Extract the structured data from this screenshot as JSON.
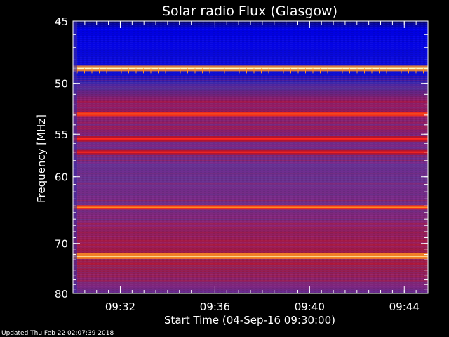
{
  "chart_data": {
    "type": "heatmap",
    "title": "Solar radio Flux (Glasgow)",
    "xlabel": "Start Time (04-Sep-16 09:30:00)",
    "ylabel": "Frequency [MHz]",
    "ylim": [
      80,
      45
    ],
    "y_scale": "reciprocal",
    "y_ticks": [
      {
        "value": 45,
        "label": "45"
      },
      {
        "value": 50,
        "label": "50"
      },
      {
        "value": 55,
        "label": "55"
      },
      {
        "value": 60,
        "label": "60"
      },
      {
        "value": 70,
        "label": "70"
      },
      {
        "value": 80,
        "label": "80"
      }
    ],
    "xlim": [
      "09:30:00",
      "09:45:00"
    ],
    "x_ticks": [
      {
        "value": "09:32:00",
        "label": "09:32"
      },
      {
        "value": "09:36:00",
        "label": "09:36"
      },
      {
        "value": "09:40:00",
        "label": "09:40"
      },
      {
        "value": "09:44:00",
        "label": "09:44"
      }
    ],
    "colormap": [
      "#1a1a6e",
      "#0000ff",
      "#4a3aa0",
      "#8a2090",
      "#c01020",
      "#ff3010",
      "#ff9020",
      "#ffffc0"
    ],
    "background_color": "#000000",
    "emission_bands_mhz": [
      {
        "frequency": 48.7,
        "intensity": "very high"
      },
      {
        "frequency": 52.9,
        "intensity": "high"
      },
      {
        "frequency": 55.5,
        "intensity": "medium-high"
      },
      {
        "frequency": 57.0,
        "intensity": "medium-high"
      },
      {
        "frequency": 64.2,
        "intensity": "high"
      },
      {
        "frequency": 72.3,
        "intensity": "very high"
      }
    ]
  },
  "footer": {
    "updated": "Updated Thu Feb 22 02:07:39 2018"
  }
}
